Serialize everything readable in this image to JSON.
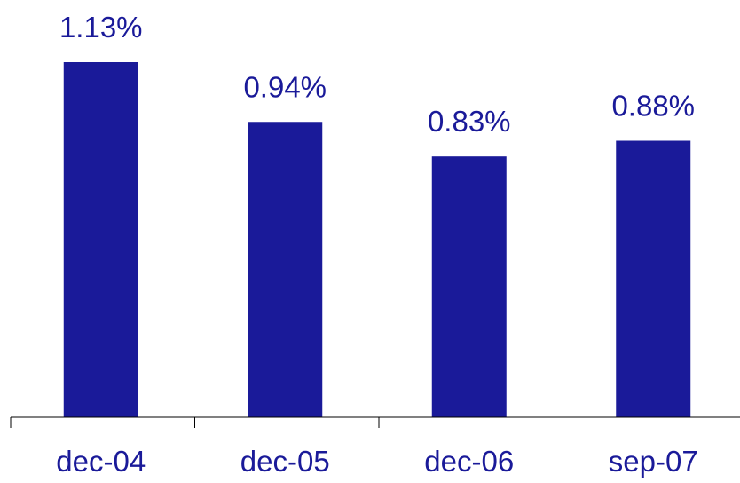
{
  "chart_data": {
    "type": "bar",
    "categories": [
      "dec-04",
      "dec-05",
      "dec-06",
      "sep-07"
    ],
    "values": [
      1.13,
      0.94,
      0.83,
      0.88
    ],
    "data_labels": [
      "1.13%",
      "0.94%",
      "0.83%",
      "0.88%"
    ],
    "ylim": [
      0,
      1.13
    ],
    "grid": false,
    "colors": {
      "bar": "#1a1a99",
      "label": "#1a1a99",
      "axis": "#000000"
    }
  }
}
